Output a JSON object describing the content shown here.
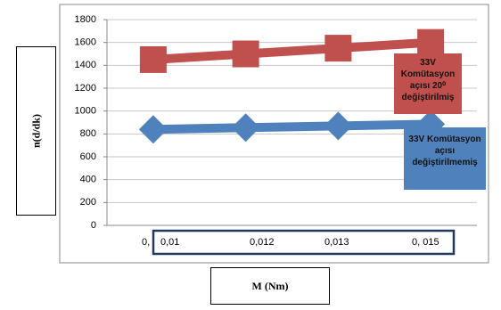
{
  "chart_data": {
    "type": "line",
    "categories": [
      "0,01",
      "0,012",
      "0,013",
      "0, 015"
    ],
    "category_remnant": "0,",
    "series": [
      {
        "name": "33V Komütasyon açısı 20⁰ değiştirilmiş",
        "color": "#c0504d",
        "marker": "square",
        "values": [
          1450,
          1500,
          1550,
          1600
        ]
      },
      {
        "name": "33V Komütasyon açısı değiştirilmemiş",
        "color": "#4f81bd",
        "marker": "diamond",
        "values": [
          840,
          855,
          870,
          885
        ]
      }
    ],
    "ylim": [
      0,
      1800
    ],
    "yticks": [
      0,
      200,
      400,
      600,
      800,
      1000,
      1200,
      1400,
      1600,
      1800
    ],
    "grid": true,
    "y_label": "n(d/dk)",
    "x_label": "M (Nm)"
  }
}
